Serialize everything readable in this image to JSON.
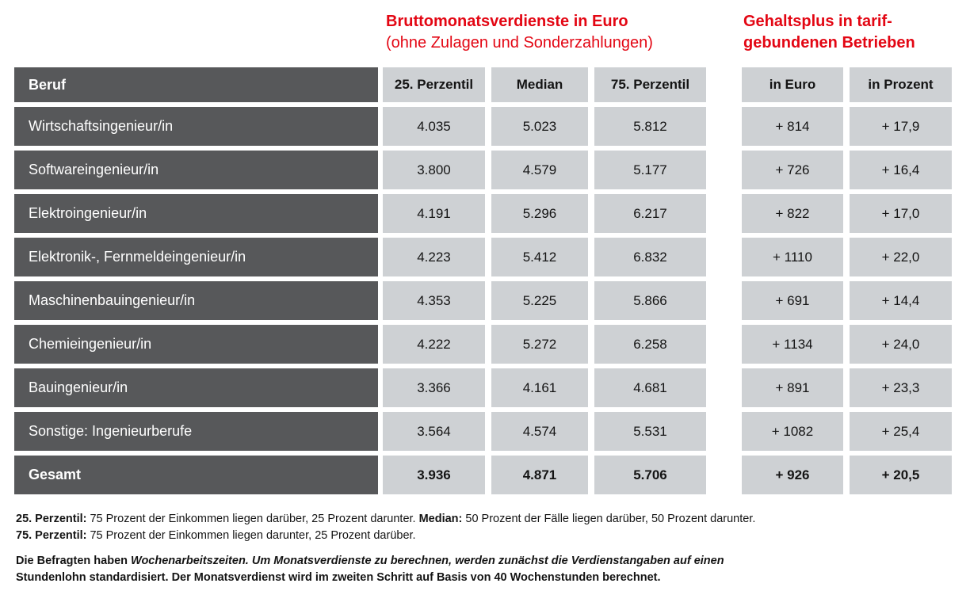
{
  "colors": {
    "accent_red": "#e30613",
    "dark_gray": "#57585a",
    "light_gray": "#ced1d4"
  },
  "headings": {
    "earnings_title": "Bruttomonatsverdienste in Euro",
    "earnings_subtitle": "(ohne Zulagen und Sonderzahlungen)",
    "bonus_title_line1": "Gehaltsplus in tarif-",
    "bonus_title_line2": "gebundenen Betrieben"
  },
  "chart_data": {
    "type": "table",
    "title": "Bruttomonatsverdienste in Euro (ohne Zulagen und Sonderzahlungen) / Gehaltsplus in tarifgebundenen Betrieben",
    "columns": [
      "Beruf",
      "25. Perzentil",
      "Median",
      "75. Perzentil",
      "in Euro",
      "in Prozent"
    ],
    "rows": [
      [
        "Wirtschaftsingenieur/in",
        "4.035",
        "5.023",
        "5.812",
        "+ 814",
        "+ 17,9"
      ],
      [
        "Softwareingenieur/in",
        "3.800",
        "4.579",
        "5.177",
        "+ 726",
        "+ 16,4"
      ],
      [
        "Elektroingenieur/in",
        "4.191",
        "5.296",
        "6.217",
        "+ 822",
        "+ 17,0"
      ],
      [
        "Elektronik-, Fernmeldeingenieur/in",
        "4.223",
        "5.412",
        "6.832",
        "+ 1110",
        "+ 22,0"
      ],
      [
        "Maschinenbauingenieur/in",
        "4.353",
        "5.225",
        "5.866",
        "+ 691",
        "+ 14,4"
      ],
      [
        "Chemieingenieur/in",
        "4.222",
        "5.272",
        "6.258",
        "+ 1134",
        "+ 24,0"
      ],
      [
        "Bauingenieur/in",
        "3.366",
        "4.161",
        "4.681",
        "+ 891",
        "+ 23,3"
      ],
      [
        "Sonstige: Ingenieurberufe",
        "3.564",
        "4.574",
        "5.531",
        "+ 1082",
        "+ 25,4"
      ]
    ],
    "total_row": [
      "Gesamt",
      "3.936",
      "4.871",
      "5.706",
      "+ 926",
      "+ 20,5"
    ]
  },
  "footnotes": {
    "percentile_note_lines": [
      [
        {
          "text": "25. Perzentil:",
          "bold": true
        },
        {
          "text": " 75 Prozent der Einkommen liegen darüber, 25 Prozent darunter. "
        },
        {
          "text": "Median:",
          "bold": true
        },
        {
          "text": " 50 Prozent der Fälle liegen darüber, 50 Prozent darunter."
        }
      ],
      [
        {
          "text": "75. Perzentil:",
          "bold": true
        },
        {
          "text": " 75 Prozent der Einkommen liegen darunter, 25 Prozent darüber."
        }
      ]
    ],
    "method_note_lines": [
      [
        {
          "text": "Die Befragten haben ",
          "bold": true
        },
        {
          "text": "Wochenarbeitszeiten. Um Monatsverdienste zu berechnen, werden zunächst die Verdienstangaben auf einen",
          "bold": true,
          "italic": true
        }
      ],
      [
        {
          "text": "Stundenlohn standardisiert. Der Monatsverdienst wird im zweiten Schritt auf Basis von 40 Wochenstunden berechnet.",
          "bold": true
        }
      ]
    ]
  }
}
